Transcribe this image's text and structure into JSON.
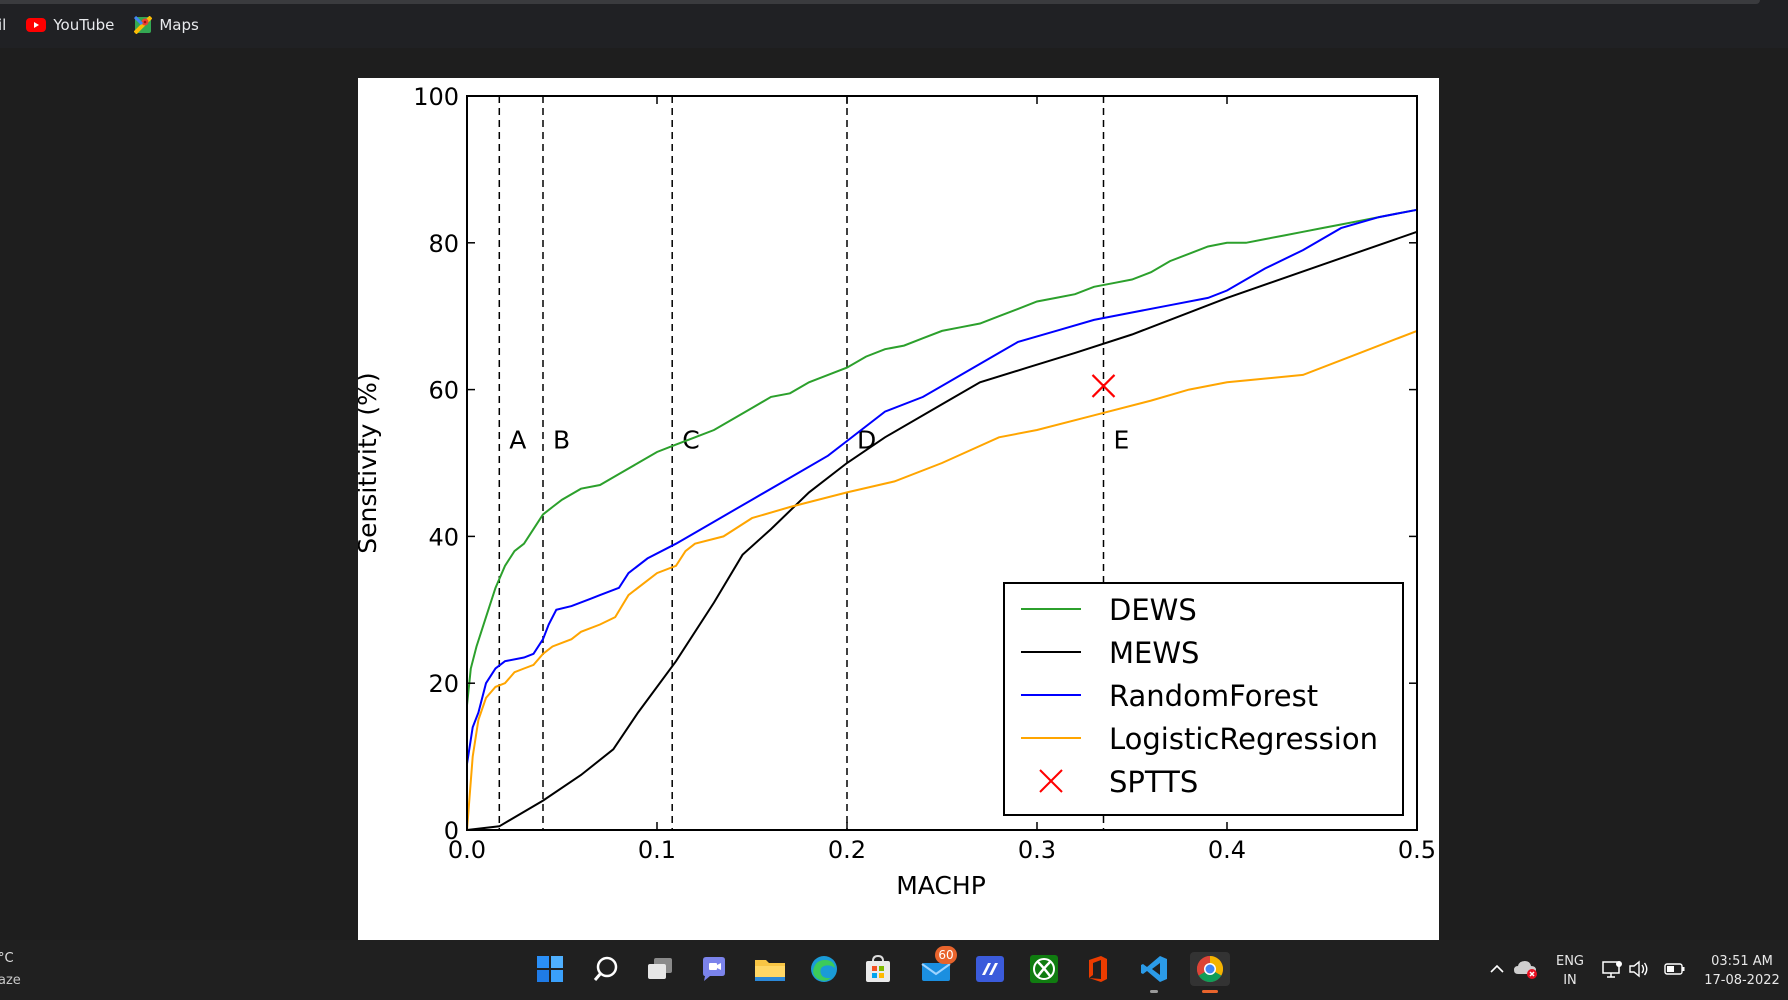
{
  "browser": {
    "bookmarks": [
      {
        "label": "il",
        "icon": "bookmark-partial-icon"
      },
      {
        "label": "YouTube",
        "icon": "youtube-icon"
      },
      {
        "label": "Maps",
        "icon": "maps-icon"
      }
    ]
  },
  "chart_data": {
    "type": "line",
    "title": "",
    "xlabel": "MACHP",
    "ylabel": "Sensitivity (%)",
    "xlim": [
      0.0,
      0.5
    ],
    "ylim": [
      0,
      100
    ],
    "xticks": [
      "0.0",
      "0.1",
      "0.2",
      "0.3",
      "0.4",
      "0.5"
    ],
    "yticks": [
      "0",
      "20",
      "40",
      "60",
      "80",
      "100"
    ],
    "grid": false,
    "legend_position": "bottom-right",
    "series": [
      {
        "name": "DEWS",
        "color": "#2ca02c",
        "points": [
          [
            0,
            17
          ],
          [
            0.002,
            22
          ],
          [
            0.005,
            25
          ],
          [
            0.01,
            29
          ],
          [
            0.015,
            33
          ],
          [
            0.02,
            36
          ],
          [
            0.025,
            38
          ],
          [
            0.03,
            39
          ],
          [
            0.035,
            41
          ],
          [
            0.04,
            43
          ],
          [
            0.045,
            44
          ],
          [
            0.05,
            45
          ],
          [
            0.06,
            46.5
          ],
          [
            0.07,
            47
          ],
          [
            0.08,
            48.5
          ],
          [
            0.09,
            50
          ],
          [
            0.1,
            51.5
          ],
          [
            0.11,
            52.5
          ],
          [
            0.12,
            53.5
          ],
          [
            0.13,
            54.5
          ],
          [
            0.14,
            56
          ],
          [
            0.15,
            57.5
          ],
          [
            0.16,
            59
          ],
          [
            0.17,
            59.5
          ],
          [
            0.18,
            61
          ],
          [
            0.19,
            62
          ],
          [
            0.2,
            63
          ],
          [
            0.21,
            64.5
          ],
          [
            0.22,
            65.5
          ],
          [
            0.23,
            66
          ],
          [
            0.24,
            67
          ],
          [
            0.25,
            68
          ],
          [
            0.26,
            68.5
          ],
          [
            0.27,
            69
          ],
          [
            0.28,
            70
          ],
          [
            0.29,
            71
          ],
          [
            0.3,
            72
          ],
          [
            0.31,
            72.5
          ],
          [
            0.32,
            73
          ],
          [
            0.33,
            74
          ],
          [
            0.34,
            74.5
          ],
          [
            0.35,
            75
          ],
          [
            0.36,
            76
          ],
          [
            0.37,
            77.5
          ],
          [
            0.38,
            78.5
          ],
          [
            0.39,
            79.5
          ],
          [
            0.4,
            80
          ],
          [
            0.41,
            80
          ],
          [
            0.42,
            80.5
          ],
          [
            0.43,
            81
          ],
          [
            0.44,
            81.5
          ],
          [
            0.45,
            82
          ],
          [
            0.46,
            82.5
          ],
          [
            0.47,
            83
          ],
          [
            0.48,
            83.5
          ],
          [
            0.49,
            84
          ],
          [
            0.5,
            84.5
          ]
        ]
      },
      {
        "name": "MEWS",
        "color": "#000000",
        "points": [
          [
            0,
            0
          ],
          [
            0.017,
            0.5
          ],
          [
            0.04,
            4
          ],
          [
            0.06,
            7.5
          ],
          [
            0.077,
            11
          ],
          [
            0.09,
            16
          ],
          [
            0.11,
            23
          ],
          [
            0.13,
            31
          ],
          [
            0.145,
            37.5
          ],
          [
            0.16,
            41
          ],
          [
            0.18,
            46
          ],
          [
            0.2,
            50
          ],
          [
            0.22,
            53.5
          ],
          [
            0.25,
            58
          ],
          [
            0.27,
            61
          ],
          [
            0.295,
            63
          ],
          [
            0.32,
            65
          ],
          [
            0.35,
            67.5
          ],
          [
            0.4,
            72.5
          ],
          [
            0.45,
            77
          ],
          [
            0.5,
            81.5
          ]
        ]
      },
      {
        "name": "RandomForest",
        "color": "#0000ff",
        "points": [
          [
            0,
            9
          ],
          [
            0.003,
            14
          ],
          [
            0.006,
            16
          ],
          [
            0.01,
            20
          ],
          [
            0.015,
            22
          ],
          [
            0.02,
            23
          ],
          [
            0.03,
            23.5
          ],
          [
            0.035,
            24
          ],
          [
            0.04,
            26
          ],
          [
            0.043,
            28
          ],
          [
            0.047,
            30
          ],
          [
            0.055,
            30.5
          ],
          [
            0.065,
            31.5
          ],
          [
            0.07,
            32
          ],
          [
            0.08,
            33
          ],
          [
            0.085,
            35
          ],
          [
            0.095,
            37
          ],
          [
            0.11,
            39
          ],
          [
            0.13,
            42
          ],
          [
            0.15,
            45
          ],
          [
            0.17,
            48
          ],
          [
            0.19,
            51
          ],
          [
            0.2,
            53
          ],
          [
            0.22,
            57
          ],
          [
            0.24,
            59
          ],
          [
            0.26,
            62
          ],
          [
            0.28,
            65
          ],
          [
            0.29,
            66.5
          ],
          [
            0.31,
            68
          ],
          [
            0.33,
            69.5
          ],
          [
            0.35,
            70.5
          ],
          [
            0.37,
            71.5
          ],
          [
            0.39,
            72.5
          ],
          [
            0.4,
            73.5
          ],
          [
            0.42,
            76.5
          ],
          [
            0.44,
            79
          ],
          [
            0.46,
            82
          ],
          [
            0.48,
            83.5
          ],
          [
            0.5,
            84.5
          ]
        ]
      },
      {
        "name": "LogisticRegression",
        "color": "#ffa500",
        "points": [
          [
            0,
            0
          ],
          [
            0.003,
            10
          ],
          [
            0.006,
            15
          ],
          [
            0.01,
            18
          ],
          [
            0.015,
            19.5
          ],
          [
            0.02,
            20
          ],
          [
            0.025,
            21.5
          ],
          [
            0.03,
            22
          ],
          [
            0.035,
            22.5
          ],
          [
            0.04,
            24
          ],
          [
            0.045,
            25
          ],
          [
            0.055,
            26
          ],
          [
            0.06,
            27
          ],
          [
            0.07,
            28
          ],
          [
            0.078,
            29
          ],
          [
            0.085,
            32
          ],
          [
            0.095,
            34
          ],
          [
            0.1,
            35
          ],
          [
            0.11,
            36
          ],
          [
            0.115,
            38
          ],
          [
            0.12,
            39
          ],
          [
            0.135,
            40
          ],
          [
            0.15,
            42.5
          ],
          [
            0.17,
            44
          ],
          [
            0.2,
            46
          ],
          [
            0.225,
            47.5
          ],
          [
            0.25,
            50
          ],
          [
            0.28,
            53.5
          ],
          [
            0.3,
            54.5
          ],
          [
            0.33,
            56.5
          ],
          [
            0.36,
            58.5
          ],
          [
            0.38,
            60
          ],
          [
            0.4,
            61
          ],
          [
            0.44,
            62
          ],
          [
            0.47,
            65
          ],
          [
            0.5,
            68
          ]
        ]
      }
    ],
    "markers": [
      {
        "name": "SPTTS",
        "x": 0.335,
        "y": 60.5,
        "color": "#ff0000",
        "symbol": "x"
      }
    ],
    "reference_lines": [
      {
        "label": "A",
        "x": 0.017
      },
      {
        "label": "B",
        "x": 0.04
      },
      {
        "label": "C",
        "x": 0.108
      },
      {
        "label": "D",
        "x": 0.2
      },
      {
        "label": "E",
        "x": 0.335
      }
    ]
  },
  "taskbar": {
    "weather_temp": "°C",
    "weather_desc": "aze",
    "apps": [
      {
        "name": "start-icon"
      },
      {
        "name": "search-icon"
      },
      {
        "name": "task-view-icon"
      },
      {
        "name": "chat-icon"
      },
      {
        "name": "file-explorer-icon"
      },
      {
        "name": "edge-icon"
      },
      {
        "name": "store-icon"
      },
      {
        "name": "mail-icon",
        "badge": "60"
      },
      {
        "name": "visual-studio-icon"
      },
      {
        "name": "xbox-icon"
      },
      {
        "name": "office-icon"
      },
      {
        "name": "vscode-icon"
      },
      {
        "name": "chrome-icon"
      }
    ],
    "language": "ENG",
    "region": "IN",
    "time": "03:51 AM",
    "date": "17-08-2022"
  }
}
